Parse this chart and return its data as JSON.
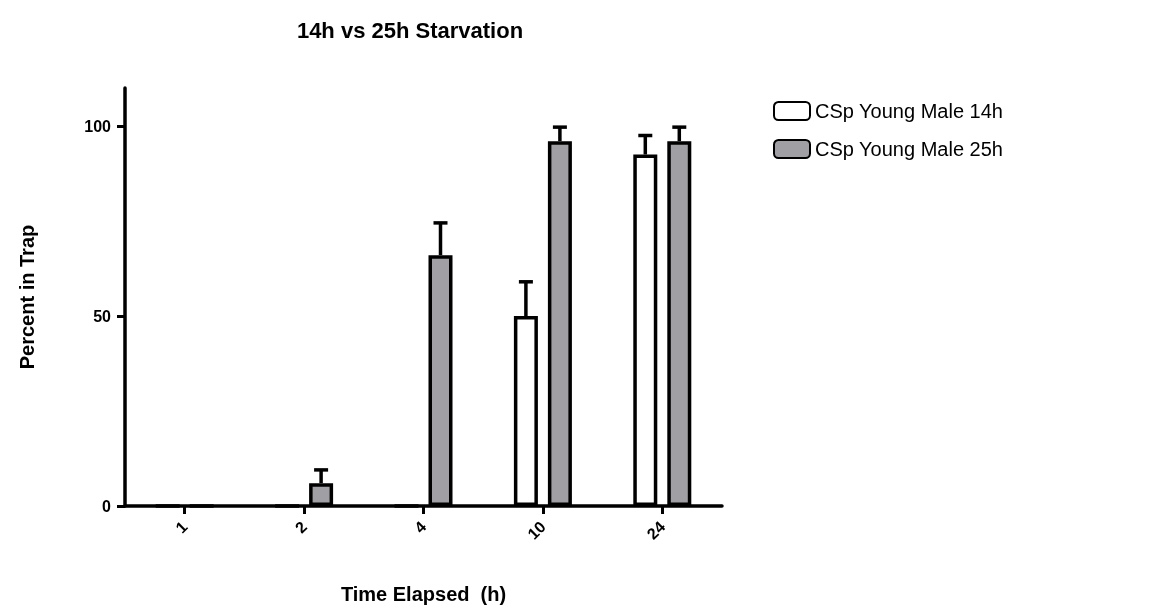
{
  "chart_data": {
    "type": "bar",
    "title": "14h vs 25h Starvation",
    "xlabel": "Time Elapsed  (h)",
    "ylabel": "Percent in Trap",
    "categories": [
      "1",
      "2",
      "4",
      "10",
      "24"
    ],
    "series": [
      {
        "name": "CSp Young Male 14h",
        "color": "#ffffff",
        "values": [
          0,
          0,
          0,
          50,
          92.5
        ],
        "errors": [
          null,
          null,
          null,
          [
            50,
            59
          ],
          [
            92.5,
            97.5
          ]
        ]
      },
      {
        "name": "CSp Young Male 25h",
        "color": "#a0a0a4",
        "values": [
          0,
          6,
          66,
          96,
          96
        ],
        "errors": [
          null,
          [
            6,
            9.5
          ],
          [
            66,
            74.5
          ],
          [
            96,
            99.7
          ],
          [
            96,
            99.7
          ]
        ]
      }
    ],
    "ylim": [
      0,
      110
    ],
    "yticks": [
      0,
      50,
      100
    ],
    "grid": false,
    "legend": "top right"
  }
}
